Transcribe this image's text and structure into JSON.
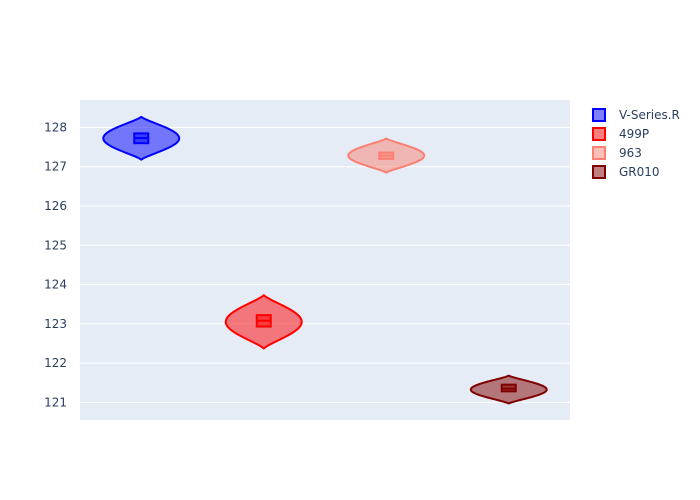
{
  "chart_data": {
    "type": "violin",
    "title": "",
    "xlabel": "",
    "ylabel": "",
    "ylim": [
      120.55,
      128.7
    ],
    "yticks": [
      121,
      122,
      123,
      124,
      125,
      126,
      127,
      128
    ],
    "grid": true,
    "legend_position": "top-right",
    "series": [
      {
        "name": "V-Series.R",
        "color": "#0000ff",
        "min": 127.18,
        "q1": 127.6,
        "median": 127.73,
        "q3": 127.85,
        "max": 128.27,
        "halfwidth": 0.62
      },
      {
        "name": "499P",
        "color": "#ff0000",
        "min": 122.37,
        "q1": 122.93,
        "median": 123.08,
        "q3": 123.22,
        "max": 123.73,
        "halfwidth": 0.62
      },
      {
        "name": "963",
        "color": "#fa8072",
        "min": 126.85,
        "q1": 127.2,
        "median": 127.28,
        "q3": 127.36,
        "max": 127.72,
        "halfwidth": 0.62
      },
      {
        "name": "GR010",
        "color": "#800000",
        "min": 120.97,
        "q1": 121.28,
        "median": 121.35,
        "q3": 121.45,
        "max": 121.68,
        "halfwidth": 0.62
      }
    ]
  }
}
